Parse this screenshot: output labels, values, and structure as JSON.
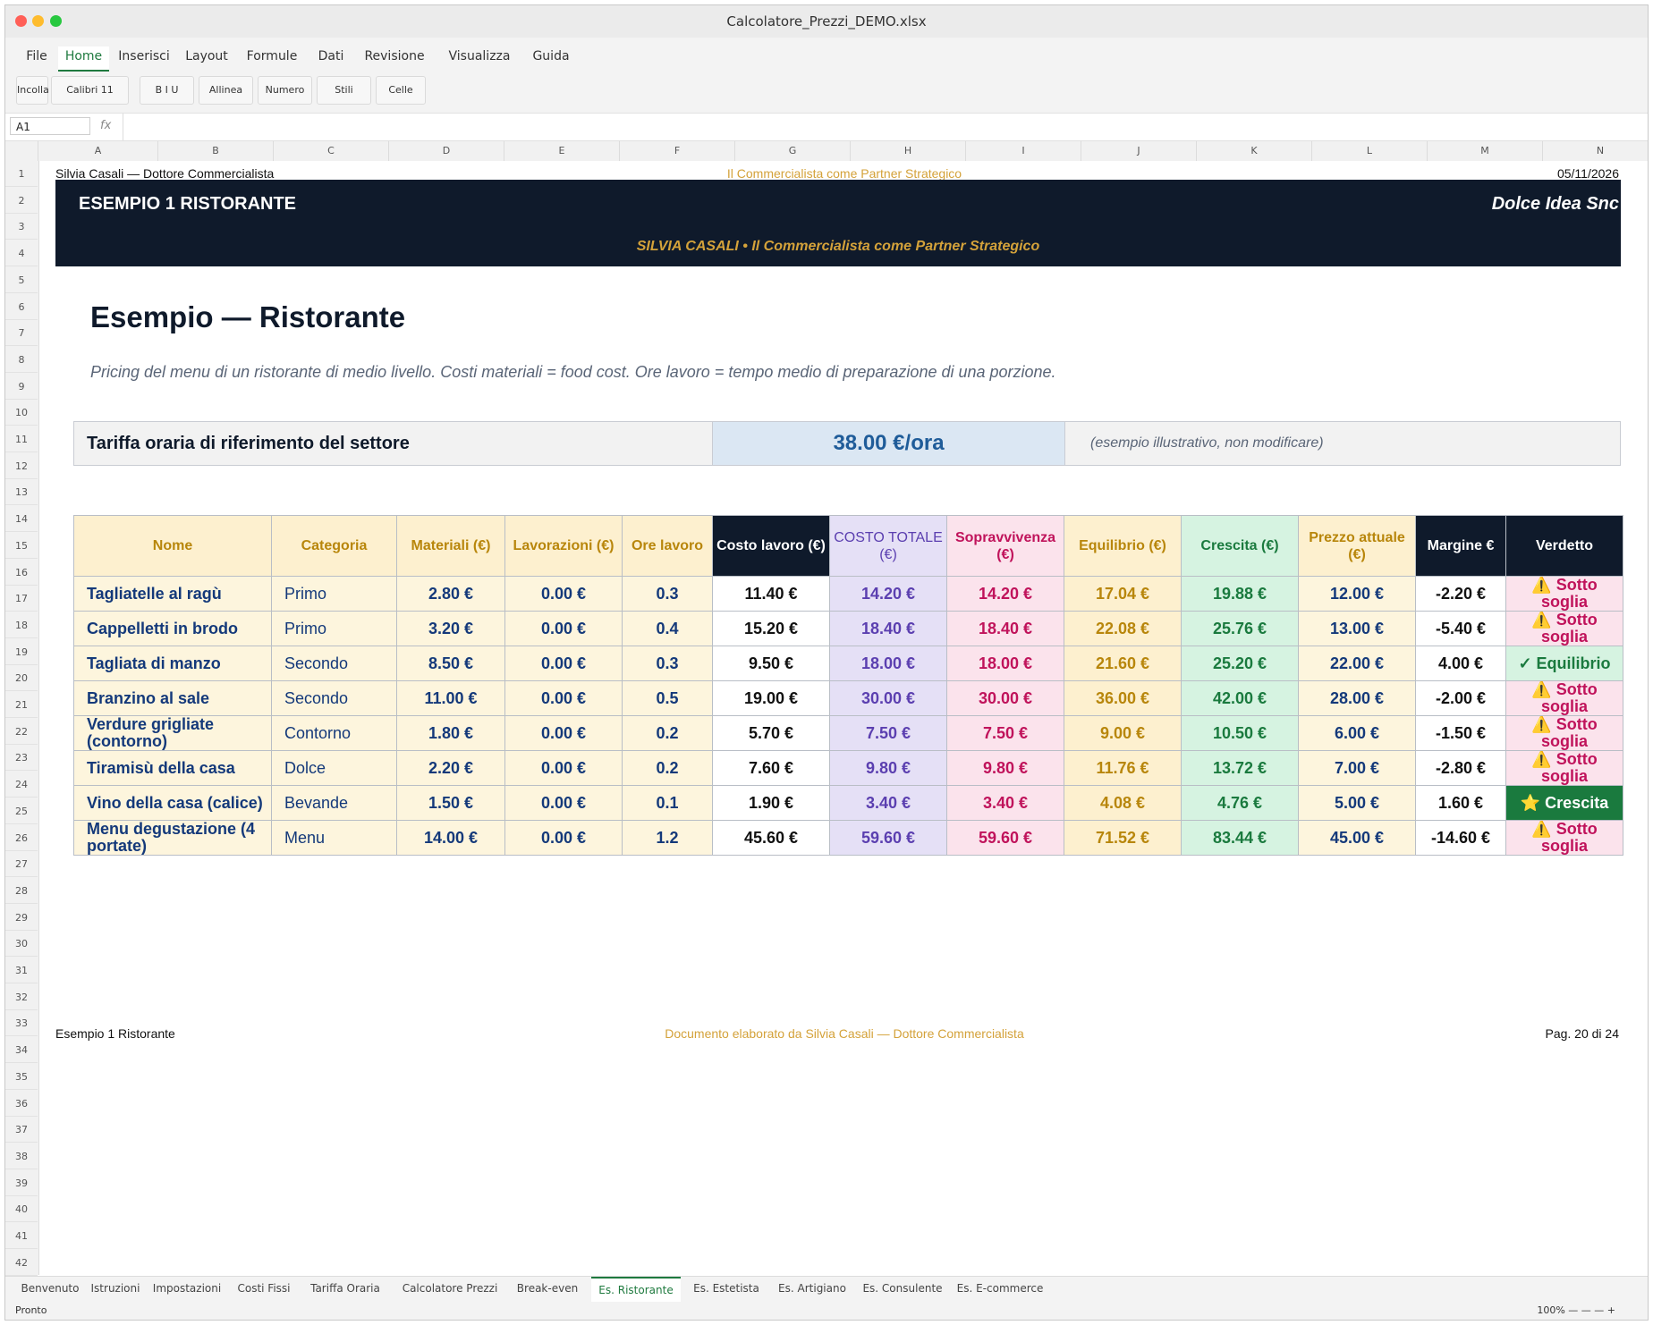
{
  "window": {
    "title": "Calcolatore_Prezzi_DEMO.xlsx"
  },
  "ribbon": {
    "tabs": [
      "File",
      "Home",
      "Inserisci",
      "Layout",
      "Formule",
      "Dati",
      "Revisione",
      "Visualizza",
      "Guida"
    ],
    "active_tab": "Home",
    "buttons": [
      "Incolla",
      "Calibri 11",
      "B I U",
      "Allinea",
      "Numero",
      "Stili",
      "Celle"
    ]
  },
  "formula_bar": {
    "cell_ref": "A1",
    "fx": "fx",
    "value": ""
  },
  "columns": [
    "A",
    "B",
    "C",
    "D",
    "E",
    "F",
    "G",
    "H",
    "I",
    "J",
    "K",
    "L",
    "M",
    "N"
  ],
  "rows": [
    "1",
    "2",
    "3",
    "4",
    "5",
    "6",
    "7",
    "8",
    "9",
    "10",
    "11",
    "12",
    "13",
    "14",
    "15",
    "16",
    "17",
    "18",
    "19",
    "20",
    "21",
    "22",
    "23",
    "24",
    "25",
    "26",
    "27",
    "28",
    "29",
    "30",
    "31",
    "32",
    "33",
    "34",
    "35",
    "36",
    "37",
    "38",
    "39",
    "40",
    "41",
    "42"
  ],
  "page_header": {
    "left": "Silvia Casali — Dottore Commercialista",
    "center": "Il Commercialista come Partner Strategico",
    "right": "05/11/2026"
  },
  "banner": {
    "title": "ESEMPIO 1 RISTORANTE",
    "client": "Dolce Idea Snc",
    "subtitle": "SILVIA CASALI  •  Il Commercialista come Partner Strategico"
  },
  "page": {
    "title": "Esempio — Ristorante",
    "description": "Pricing del menu di un ristorante di medio livello. Costi materiali = food cost. Ore lavoro = tempo medio di preparazione di una porzione."
  },
  "rate": {
    "label": "Tariffa oraria di riferimento del settore",
    "value": "38.00 €/ora",
    "note": "(esempio illustrativo, non modificare)"
  },
  "table": {
    "headers": [
      "Nome",
      "Categoria",
      "Materiali (€)",
      "Lavorazioni (€)",
      "Ore lavoro",
      "Costo lavoro (€)",
      "COSTO TOTALE (€)",
      "Sopravvivenza (€)",
      "Equilibrio (€)",
      "Crescita (€)",
      "Prezzo attuale (€)",
      "Margine €",
      "Verdetto"
    ],
    "rows": [
      [
        "Tagliatelle al ragù",
        "Primo",
        "2.80 €",
        "0.00 €",
        "0.3",
        "11.40 €",
        "14.20 €",
        "14.20 €",
        "17.04 €",
        "19.88 €",
        "12.00 €",
        "-2.20 €",
        "⚠️ Sotto soglia"
      ],
      [
        "Cappelletti in brodo",
        "Primo",
        "3.20 €",
        "0.00 €",
        "0.4",
        "15.20 €",
        "18.40 €",
        "18.40 €",
        "22.08 €",
        "25.76 €",
        "13.00 €",
        "-5.40 €",
        "⚠️ Sotto soglia"
      ],
      [
        "Tagliata di manzo",
        "Secondo",
        "8.50 €",
        "0.00 €",
        "0.3",
        "9.50 €",
        "18.00 €",
        "18.00 €",
        "21.60 €",
        "25.20 €",
        "22.00 €",
        "4.00 €",
        "✓ Equilibrio"
      ],
      [
        "Branzino al sale",
        "Secondo",
        "11.00 €",
        "0.00 €",
        "0.5",
        "19.00 €",
        "30.00 €",
        "30.00 €",
        "36.00 €",
        "42.00 €",
        "28.00 €",
        "-2.00 €",
        "⚠️ Sotto soglia"
      ],
      [
        "Verdure grigliate (contorno)",
        "Contorno",
        "1.80 €",
        "0.00 €",
        "0.2",
        "5.70 €",
        "7.50 €",
        "7.50 €",
        "9.00 €",
        "10.50 €",
        "6.00 €",
        "-1.50 €",
        "⚠️ Sotto soglia"
      ],
      [
        "Tiramisù della casa",
        "Dolce",
        "2.20 €",
        "0.00 €",
        "0.2",
        "7.60 €",
        "9.80 €",
        "9.80 €",
        "11.76 €",
        "13.72 €",
        "7.00 €",
        "-2.80 €",
        "⚠️ Sotto soglia"
      ],
      [
        "Vino della casa (calice)",
        "Bevande",
        "1.50 €",
        "0.00 €",
        "0.1",
        "1.90 €",
        "3.40 €",
        "3.40 €",
        "4.08 €",
        "4.76 €",
        "5.00 €",
        "1.60 €",
        "⭐ Crescita"
      ],
      [
        "Menu degustazione (4 portate)",
        "Menu",
        "14.00 €",
        "0.00 €",
        "1.2",
        "45.60 €",
        "59.60 €",
        "59.60 €",
        "71.52 €",
        "83.44 €",
        "45.00 €",
        "-14.60 €",
        "⚠️ Sotto soglia"
      ]
    ]
  },
  "page_footer": {
    "left": "Esempio 1 Ristorante",
    "center": "Documento elaborato da Silvia Casali — Dottore Commercialista",
    "right": "Pag. 20 di 24"
  },
  "sheet_tabs": [
    "Benvenuto",
    "Istruzioni",
    "Impostazioni",
    "Costi Fissi",
    "Tariffa Oraria",
    "Calcolatore Prezzi",
    "Break-even",
    "Es. Ristorante",
    "Es. Estetista",
    "Es. Artigiano",
    "Es. Consulente",
    "Es. E-commerce"
  ],
  "active_sheet": "Es. Ristorante",
  "status": {
    "left": "Pronto",
    "zoom": "100% — — — +"
  },
  "colors": {
    "banner_bg": "#0f1a2b",
    "gold": "#d4a23a",
    "brand_green": "#1f7a3f",
    "rate_blue": "#1f5c99"
  }
}
